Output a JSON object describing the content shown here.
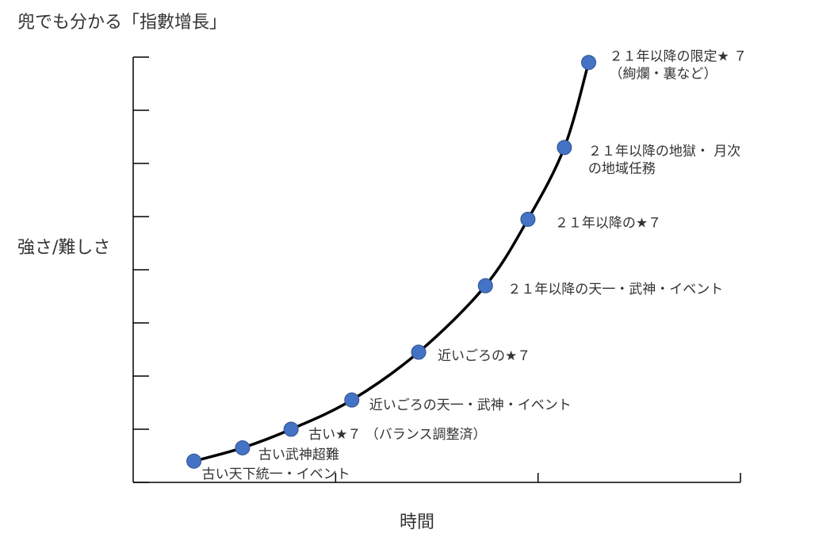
{
  "title": "兜でも分かる「指數增長」",
  "chart_data": {
    "type": "line",
    "xlabel": "時間",
    "ylabel": "強さ/難しさ",
    "xlim": [
      0,
      10
    ],
    "ylim": [
      0,
      8
    ],
    "points": [
      {
        "x": 1.0,
        "y": 0.4,
        "label": [
          "古い天下統一・イベント"
        ]
      },
      {
        "x": 1.8,
        "y": 0.65,
        "label": [
          "古い武神超難"
        ]
      },
      {
        "x": 2.6,
        "y": 1.0,
        "label": [
          "古い★７ （バランス調整済）"
        ]
      },
      {
        "x": 3.6,
        "y": 1.55,
        "label": [
          "近いごろの天一・武神・イベント"
        ]
      },
      {
        "x": 4.7,
        "y": 2.45,
        "label": [
          "近いごろの★７"
        ]
      },
      {
        "x": 5.8,
        "y": 3.7,
        "label": [
          "２１年以降の天一・武神・イベント"
        ]
      },
      {
        "x": 6.5,
        "y": 4.95,
        "label": [
          "２１年以降の★７"
        ]
      },
      {
        "x": 7.1,
        "y": 6.3,
        "label": [
          "２１年以降の地獄・ 月次",
          "の地域任務"
        ]
      },
      {
        "x": 7.5,
        "y": 7.9,
        "label": [
          "２１年以降の限定★ ７",
          "（絢爛・裏など）"
        ]
      }
    ],
    "line_color": "#000000",
    "marker_color": "#4472C4",
    "grid": false,
    "y_ticks": 8,
    "x_ticks": 3
  }
}
